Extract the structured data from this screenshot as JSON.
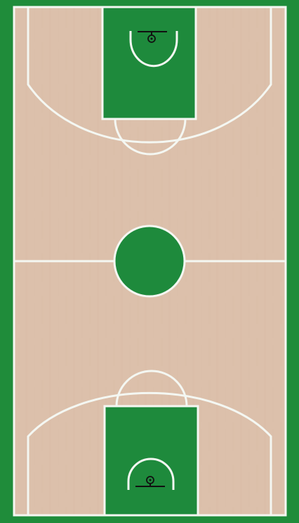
{
  "court": {
    "surround_color": "#1f8c3a",
    "floor_color": "#dcc0ab",
    "floor_grain_color": "#d3b59e",
    "paint_color": "#1e8a3c",
    "center_circle_color": "#1e8a3c",
    "line_color": "#f4f7f2",
    "hoop_color": "#111111",
    "icons": {
      "top_hoop": "basket-hoop-icon",
      "bottom_hoop": "basket-hoop-icon"
    }
  }
}
